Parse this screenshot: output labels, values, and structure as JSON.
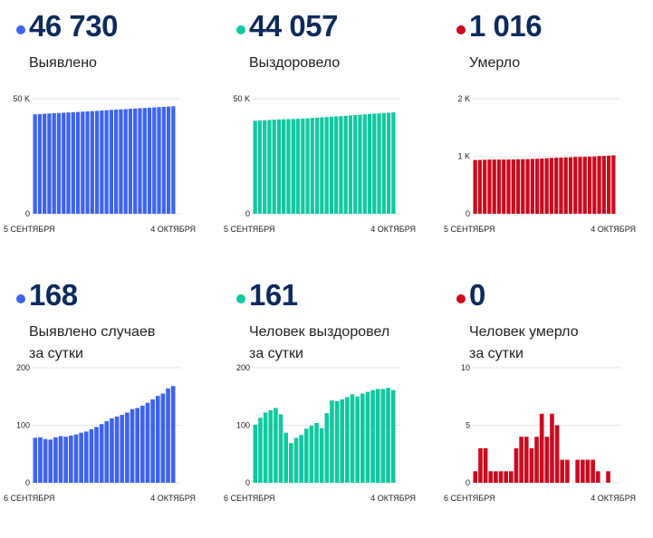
{
  "colors": {
    "blue": "#3d63f0",
    "teal": "#10c9a0",
    "red": "#cc0a1e",
    "grid": "#e6e6e6",
    "number": "#0d2a5c"
  },
  "panels": [
    {
      "value": "46 730",
      "label_lines": [
        "Выявлено"
      ],
      "color": "#3d63f0"
    },
    {
      "value": "44 057",
      "label_lines": [
        "Выздоровело"
      ],
      "color": "#10c9a0"
    },
    {
      "value": "1 016",
      "label_lines": [
        "Умерло"
      ],
      "color": "#cc0a1e"
    },
    {
      "value": "168",
      "label_lines": [
        "Выявлено случаев",
        "за сутки"
      ],
      "color": "#3d63f0"
    },
    {
      "value": "161",
      "label_lines": [
        "Человек выздоровел",
        "за сутки"
      ],
      "color": "#10c9a0"
    },
    {
      "value": "0",
      "label_lines": [
        "Человек умерло",
        "за сутки"
      ],
      "color": "#cc0a1e"
    }
  ],
  "chart_data": [
    {
      "type": "bar",
      "color": "#3d63f0",
      "x_start": "5 СЕНТЯБРЯ",
      "x_end": "4 ОКТЯБРЯ",
      "yticks": [
        {
          "v": 0,
          "t": "0"
        },
        {
          "v": 50000,
          "t": "50 K"
        }
      ],
      "ylim": [
        0,
        50000
      ],
      "values": [
        43200,
        43330,
        43450,
        43570,
        43690,
        43800,
        43910,
        44020,
        44130,
        44240,
        44360,
        44480,
        44600,
        44730,
        44860,
        44990,
        45120,
        45250,
        45380,
        45500,
        45620,
        45740,
        45860,
        45980,
        46110,
        46240,
        46360,
        46480,
        46600,
        46730
      ]
    },
    {
      "type": "bar",
      "color": "#10c9a0",
      "x_start": "5 СЕНТЯБРЯ",
      "x_end": "4 ОКТЯБРЯ",
      "yticks": [
        {
          "v": 0,
          "t": "0"
        },
        {
          "v": 50000,
          "t": "50 K"
        }
      ],
      "ylim": [
        0,
        50000
      ],
      "values": [
        40400,
        40530,
        40660,
        40790,
        40920,
        41020,
        41080,
        41140,
        41180,
        41260,
        41360,
        41500,
        41640,
        41780,
        41920,
        42050,
        42180,
        42310,
        42450,
        42590,
        42740,
        42890,
        43040,
        43190,
        43340,
        43490,
        43640,
        43790,
        43900,
        44057
      ]
    },
    {
      "type": "bar",
      "color": "#cc0a1e",
      "x_start": "5 СЕНТЯБРЯ",
      "x_end": "4 ОКТЯБРЯ",
      "yticks": [
        {
          "v": 0,
          "t": "0"
        },
        {
          "v": 1000,
          "t": "1 K"
        },
        {
          "v": 2000,
          "t": "2 K"
        }
      ],
      "ylim": [
        0,
        2000
      ],
      "values": [
        935,
        936,
        939,
        942,
        942,
        942,
        942,
        943,
        944,
        947,
        949,
        950,
        954,
        957,
        961,
        965,
        971,
        975,
        977,
        980,
        983,
        988,
        989,
        990,
        993,
        996,
        1004,
        1006,
        1011,
        1016
      ]
    },
    {
      "type": "bar",
      "color": "#3d63f0",
      "x_start": "6 СЕНТЯБРЯ",
      "x_end": "4 ОКТЯБРЯ",
      "yticks": [
        {
          "v": 0,
          "t": "0"
        },
        {
          "v": 100,
          "t": "100"
        },
        {
          "v": 200,
          "t": "200"
        }
      ],
      "ylim": [
        0,
        200
      ],
      "values": [
        78,
        79,
        76,
        75,
        79,
        81,
        80,
        82,
        84,
        87,
        89,
        93,
        97,
        102,
        107,
        112,
        115,
        118,
        122,
        128,
        130,
        134,
        139,
        145,
        151,
        155,
        164,
        168
      ]
    },
    {
      "type": "bar",
      "color": "#10c9a0",
      "x_start": "6 СЕНТЯБРЯ",
      "x_end": "4 ОКТЯБРЯ",
      "yticks": [
        {
          "v": 0,
          "t": "0"
        },
        {
          "v": 100,
          "t": "100"
        },
        {
          "v": 200,
          "t": "200"
        }
      ],
      "ylim": [
        0,
        200
      ],
      "values": [
        101,
        113,
        122,
        126,
        130,
        119,
        87,
        69,
        78,
        83,
        94,
        99,
        104,
        95,
        121,
        143,
        142,
        145,
        149,
        154,
        150,
        155,
        158,
        161,
        163,
        163,
        165,
        161
      ]
    },
    {
      "type": "bar",
      "color": "#cc0a1e",
      "x_start": "6 СЕНТЯБРЯ",
      "x_end": "4 ОКТЯБРЯ",
      "yticks": [
        {
          "v": 0,
          "t": "0"
        },
        {
          "v": 5,
          "t": "5"
        },
        {
          "v": 10,
          "t": "10"
        }
      ],
      "ylim": [
        0,
        10
      ],
      "values": [
        1,
        3,
        3,
        1,
        1,
        1,
        1,
        1,
        3,
        4,
        4,
        3,
        4,
        6,
        4,
        6,
        5,
        2,
        2,
        0,
        2,
        2,
        2,
        2,
        1,
        0,
        1,
        0
      ]
    }
  ]
}
